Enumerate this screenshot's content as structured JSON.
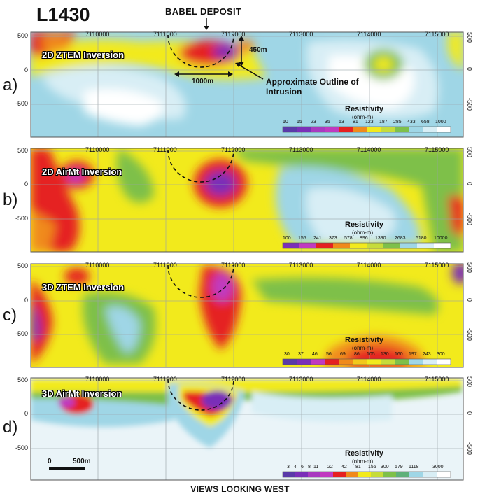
{
  "title": "L1430",
  "deposit_label": "BABEL DEPOSIT",
  "footer_label": "VIEWS LOOKING WEST",
  "x_ticks": [
    "7110000",
    "7111000",
    "7112000",
    "7113000",
    "7114000",
    "7115000"
  ],
  "y_ticks": [
    "500",
    "0",
    "-500"
  ],
  "annotations": {
    "depth": "450m",
    "width": "1000m",
    "outline": "Approximate Outline of Intrusion"
  },
  "scale_bar": {
    "start": "0",
    "end": "500m"
  },
  "panels": [
    {
      "letter": "a)",
      "name": "2D ZTEM Inversion",
      "legend_title": "Resistivity",
      "legend_unit": "(ohm-m)",
      "legend_values": [
        "10",
        "15",
        "23",
        "35",
        "53",
        "81",
        "123",
        "187",
        "285",
        "433",
        "658",
        "1000"
      ]
    },
    {
      "letter": "b)",
      "name": "2D AirMt Inversion",
      "legend_title": "Resistivity",
      "legend_unit": "(ohm-m)",
      "legend_values": [
        "100",
        "155",
        "241",
        "373",
        "578",
        "896",
        "1390",
        "2683",
        "5180",
        "10000"
      ]
    },
    {
      "letter": "c)",
      "name": "3D ZTEM Inversion",
      "legend_title": "Resistivity",
      "legend_unit": "(ohm-m)",
      "legend_values": [
        "30",
        "37",
        "46",
        "56",
        "69",
        "86",
        "105",
        "130",
        "160",
        "197",
        "243",
        "300"
      ]
    },
    {
      "letter": "d)",
      "name": "3D AirMt Inversion",
      "legend_title": "Resistivity",
      "legend_unit": "(ohm-m)",
      "legend_values": [
        "3",
        "4",
        "6",
        "8",
        "11",
        "22",
        "42",
        "81",
        "155",
        "300",
        "579",
        "1118",
        "3000"
      ]
    }
  ],
  "colors": {
    "low_resistivity": "#7a2fb8",
    "magenta": "#c03ac0",
    "red": "#e52020",
    "orange": "#f08a1a",
    "yellow": "#f2ea1c",
    "green": "#7ec04a",
    "light_blue": "#9fd6e6",
    "pale_blue": "#d8eef5",
    "high_resistivity": "#ffffff"
  }
}
